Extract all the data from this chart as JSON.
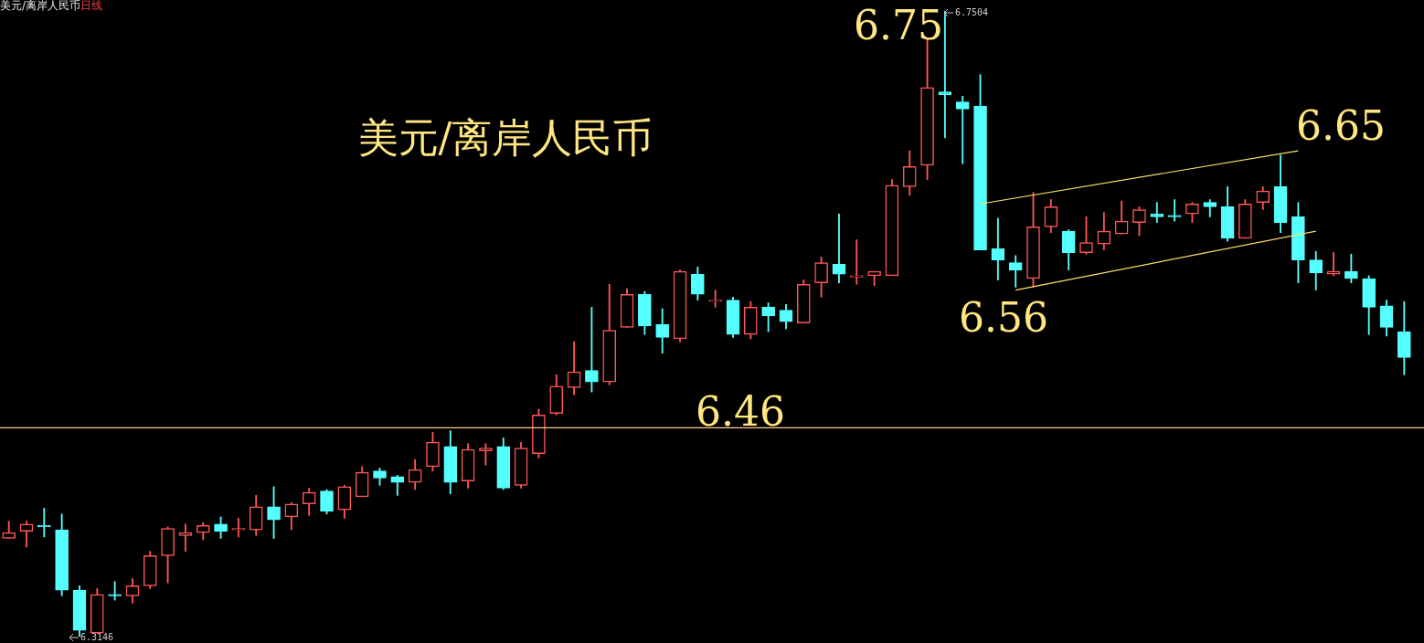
{
  "chart_data": {
    "type": "candlestick",
    "title": "美元/离岸人民币",
    "subtitle": "日线",
    "categories": [
      null,
      null,
      null,
      null,
      null,
      null,
      null,
      null,
      null,
      null,
      null,
      null,
      null,
      null,
      null,
      null,
      null,
      null,
      null,
      null,
      null,
      null,
      null,
      null,
      null,
      null,
      null,
      null,
      null,
      null,
      null,
      null,
      null,
      null,
      null,
      null,
      null,
      null,
      null,
      null,
      null,
      null,
      null,
      null,
      null,
      null,
      null,
      null,
      null,
      null,
      null,
      null,
      null,
      null,
      null,
      null,
      null,
      null,
      null,
      null,
      null,
      null,
      null,
      null,
      null,
      null,
      null,
      null,
      null,
      null,
      null,
      null,
      null,
      null,
      null,
      null,
      null,
      null,
      null,
      null
    ],
    "ohlc": [
      [
        6.383,
        6.395,
        6.383,
        6.387
      ],
      [
        6.388,
        6.395,
        6.377,
        6.393
      ],
      [
        6.392,
        6.404,
        6.384,
        6.391
      ],
      [
        6.389,
        6.4,
        6.343,
        6.347
      ],
      [
        6.347,
        6.35,
        6.3146,
        6.319
      ],
      [
        6.317,
        6.348,
        6.317,
        6.344
      ],
      [
        6.344,
        6.353,
        6.34,
        6.343
      ],
      [
        6.343,
        6.355,
        6.338,
        6.35
      ],
      [
        6.35,
        6.374,
        6.348,
        6.371
      ],
      [
        6.371,
        6.391,
        6.352,
        6.39
      ],
      [
        6.385,
        6.393,
        6.374,
        6.387
      ],
      [
        6.387,
        6.394,
        6.382,
        6.392
      ],
      [
        6.393,
        6.398,
        6.383,
        6.388
      ],
      [
        6.389,
        6.397,
        6.384,
        6.39
      ],
      [
        6.389,
        6.413,
        6.385,
        6.405
      ],
      [
        6.405,
        6.419,
        6.383,
        6.396
      ],
      [
        6.398,
        6.408,
        6.389,
        6.407
      ],
      [
        6.407,
        6.418,
        6.399,
        6.415
      ],
      [
        6.416,
        6.417,
        6.4,
        6.402
      ],
      [
        6.403,
        6.42,
        6.397,
        6.419
      ],
      [
        6.412,
        6.433,
        6.412,
        6.429
      ],
      [
        6.43,
        6.432,
        6.42,
        6.425
      ],
      [
        6.426,
        6.427,
        6.413,
        6.422
      ],
      [
        6.422,
        6.438,
        6.417,
        6.431
      ],
      [
        6.433,
        6.457,
        6.43,
        6.45
      ],
      [
        6.447,
        6.458,
        6.414,
        6.422
      ],
      [
        6.423,
        6.449,
        6.418,
        6.445
      ],
      [
        6.444,
        6.449,
        6.434,
        6.446
      ],
      [
        6.447,
        6.453,
        6.417,
        6.418
      ],
      [
        6.42,
        6.45,
        6.418,
        6.446
      ],
      [
        6.442,
        6.473,
        6.439,
        6.469
      ],
      [
        6.47,
        6.497,
        6.469,
        6.489
      ],
      [
        6.488,
        6.52,
        6.483,
        6.499
      ],
      [
        6.5,
        6.544,
        6.485,
        6.492
      ],
      [
        6.492,
        6.56,
        6.49,
        6.528
      ],
      [
        6.53,
        6.557,
        6.53,
        6.553
      ],
      [
        6.553,
        6.555,
        6.525,
        6.531
      ],
      [
        6.532,
        6.543,
        6.512,
        6.523
      ],
      [
        6.522,
        6.57,
        6.52,
        6.569
      ],
      [
        6.567,
        6.572,
        6.549,
        6.553
      ],
      [
        6.548,
        6.556,
        6.544,
        6.549
      ],
      [
        6.549,
        6.551,
        6.523,
        6.525
      ],
      [
        6.525,
        6.548,
        6.522,
        6.544
      ],
      [
        6.544,
        6.547,
        6.527,
        6.538
      ],
      [
        6.542,
        6.546,
        6.529,
        6.534
      ],
      [
        6.533,
        6.563,
        6.533,
        6.56
      ],
      [
        6.561,
        6.579,
        6.551,
        6.575
      ],
      [
        6.574,
        6.609,
        6.561,
        6.567
      ],
      [
        6.565,
        6.591,
        6.56,
        6.566
      ],
      [
        6.566,
        6.569,
        6.559,
        6.569
      ],
      [
        6.566,
        6.633,
        6.566,
        6.629
      ],
      [
        6.628,
        6.653,
        6.622,
        6.642
      ],
      [
        6.643,
        6.731,
        6.633,
        6.697
      ],
      [
        6.694,
        6.7504,
        6.662,
        6.692
      ],
      [
        6.687,
        6.691,
        6.644,
        6.682
      ],
      [
        6.684,
        6.706,
        6.584,
        6.584
      ],
      [
        6.585,
        6.606,
        6.563,
        6.577
      ],
      [
        6.575,
        6.58,
        6.558,
        6.57
      ],
      [
        6.564,
        6.624,
        6.558,
        6.6
      ],
      [
        6.6,
        6.619,
        6.596,
        6.614
      ],
      [
        6.597,
        6.598,
        6.57,
        6.582
      ],
      [
        6.582,
        6.607,
        6.581,
        6.589
      ],
      [
        6.588,
        6.61,
        6.584,
        6.597
      ],
      [
        6.595,
        6.618,
        6.595,
        6.604
      ],
      [
        6.603,
        6.614,
        6.594,
        6.612
      ],
      [
        6.609,
        6.617,
        6.603,
        6.607
      ],
      [
        6.608,
        6.619,
        6.604,
        6.607
      ],
      [
        6.609,
        6.617,
        6.603,
        6.616
      ],
      [
        6.617,
        6.619,
        6.607,
        6.614
      ],
      [
        6.614,
        6.628,
        6.59,
        6.592
      ],
      [
        6.592,
        6.619,
        6.592,
        6.616
      ],
      [
        6.617,
        6.628,
        6.612,
        6.625
      ],
      [
        6.628,
        6.65,
        6.596,
        6.603
      ],
      [
        6.607,
        6.617,
        6.561,
        6.577
      ],
      [
        6.577,
        6.583,
        6.556,
        6.568
      ],
      [
        6.567,
        6.582,
        6.566,
        6.569
      ],
      [
        6.569,
        6.581,
        6.561,
        6.564
      ],
      [
        6.564,
        6.566,
        6.525,
        6.544
      ],
      [
        6.545,
        6.549,
        6.524,
        6.53
      ],
      [
        6.527,
        6.548,
        6.497,
        6.509
      ]
    ],
    "colors": [
      "#ff5555",
      "#ff5555",
      "#55ffff",
      "#55ffff",
      "#55ffff",
      "#ff5555",
      "#55ffff",
      "#ff5555",
      "#ff5555",
      "#ff5555",
      "#ff5555",
      "#ff5555",
      "#55ffff",
      "#ff5555",
      "#ff5555",
      "#55ffff",
      "#ff5555",
      "#ff5555",
      "#55ffff",
      "#ff5555",
      "#ff5555",
      "#55ffff",
      "#55ffff",
      "#ff5555",
      "#ff5555",
      "#55ffff",
      "#ff5555",
      "#ff5555",
      "#55ffff",
      "#ff5555",
      "#ff5555",
      "#ff5555",
      "#ff5555",
      "#55ffff",
      "#ff5555",
      "#ff5555",
      "#55ffff",
      "#55ffff",
      "#ff5555",
      "#55ffff",
      "#ff5555",
      "#55ffff",
      "#ff5555",
      "#55ffff",
      "#55ffff",
      "#ff5555",
      "#ff5555",
      "#55ffff",
      "#ff5555",
      "#ff5555",
      "#ff5555",
      "#ff5555",
      "#ff5555",
      "#55ffff",
      "#55ffff",
      "#55ffff",
      "#55ffff",
      "#55ffff",
      "#ff5555",
      "#ff5555",
      "#55ffff",
      "#ff5555",
      "#ff5555",
      "#ff5555",
      "#ff5555",
      "#55ffff",
      "#55ffff",
      "#ff5555",
      "#55ffff",
      "#55ffff",
      "#ff5555",
      "#ff5555",
      "#55ffff",
      "#55ffff",
      "#55ffff",
      "#ff5555",
      "#55ffff",
      "#55ffff",
      "#55ffff",
      "#55ffff"
    ],
    "series": [
      {
        "type": "line",
        "color": "#ffe066",
        "values": [
          null,
          null,
          null,
          null,
          null,
          null,
          null,
          null,
          null,
          null,
          null,
          null,
          null,
          null,
          null,
          null,
          null,
          null,
          null,
          null,
          null,
          null,
          null,
          null,
          null,
          null,
          null,
          null,
          null,
          null,
          null,
          null,
          null,
          null,
          null,
          null,
          null,
          null,
          null,
          null,
          null,
          null,
          null,
          null,
          null,
          null,
          null,
          null,
          null,
          null,
          null,
          null,
          null,
          null,
          null,
          6.616,
          null,
          null,
          null,
          null,
          null,
          null,
          null,
          null,
          null,
          null,
          null,
          null,
          null,
          null,
          null,
          null,
          null,
          6.653,
          null,
          null,
          null,
          null,
          null,
          null
        ]
      },
      {
        "type": "line",
        "color": "#ffe066",
        "values": [
          null,
          null,
          null,
          null,
          null,
          null,
          null,
          null,
          null,
          null,
          null,
          null,
          null,
          null,
          null,
          null,
          null,
          null,
          null,
          null,
          null,
          null,
          null,
          null,
          null,
          null,
          null,
          null,
          null,
          null,
          null,
          null,
          null,
          null,
          null,
          null,
          null,
          null,
          null,
          null,
          null,
          null,
          null,
          null,
          null,
          null,
          null,
          null,
          null,
          null,
          null,
          null,
          null,
          null,
          null,
          null,
          null,
          6.556,
          null,
          null,
          null,
          null,
          null,
          null,
          null,
          null,
          null,
          null,
          null,
          null,
          null,
          null,
          null,
          null,
          6.597,
          null,
          null,
          null,
          null,
          null
        ]
      }
    ],
    "ref_lines": [
      {
        "axis": "y",
        "value": 6.46,
        "label": "6.46",
        "color": "#ffcc99"
      }
    ],
    "annotations": [
      "美元/离岸人民币",
      "6.75",
      "6.65",
      "6.56",
      "6.7504",
      "6.3146"
    ]
  }
}
